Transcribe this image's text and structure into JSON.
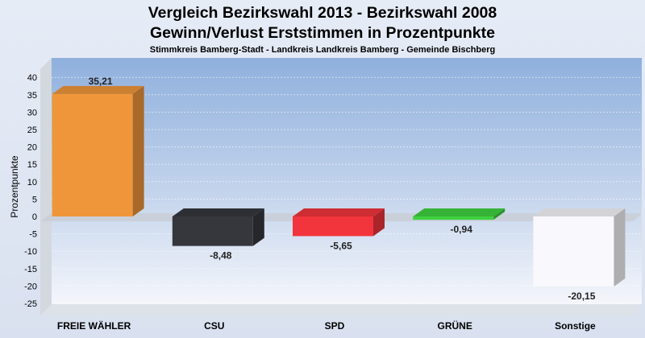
{
  "chart_data": {
    "type": "bar",
    "title": [
      "Vergleich Bezirkswahl 2013 - Bezirkswahl 2008",
      "Gewinn/Verlust Erststimmen in Prozentpunkte"
    ],
    "subtitle": "Stimmkreis Bamberg-Stadt - Landkreis Landkreis Bamberg - Gemeinde Bischberg",
    "ylabel": "Prozentpunkte",
    "ylim": [
      -27.5,
      45
    ],
    "yticks": [
      40,
      35,
      30,
      25,
      20,
      15,
      10,
      5,
      0,
      -5,
      -10,
      -15,
      -20,
      -25
    ],
    "categories": [
      "FREIE WÄHLER",
      "CSU",
      "SPD",
      "GRÜNE",
      "Sonstige"
    ],
    "values": [
      35.21,
      -8.48,
      -5.65,
      -0.94,
      -20.15
    ],
    "value_labels": [
      "35,21",
      "-8,48",
      "-5,65",
      "-0,94",
      "-20,15"
    ],
    "colors": [
      "#f0963a",
      "#35373d",
      "#f2353c",
      "#3fd23f",
      "#f8f8fd"
    ],
    "grid": true
  }
}
